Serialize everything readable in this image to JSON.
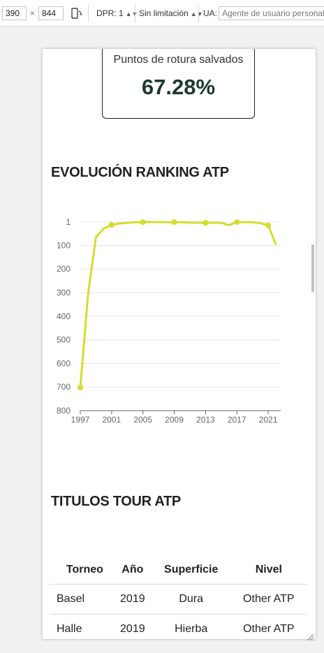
{
  "toolbar": {
    "width": "390",
    "times": "×",
    "height": "844",
    "dpr_label": "DPR: 1",
    "throttle_label": "Sin limitación",
    "ua_label": "UA:",
    "ua_placeholder": "Agente de usuario personali"
  },
  "stat": {
    "label": "Puntos de rotura salvados",
    "value": "67.28%"
  },
  "ranking_section": {
    "title": "EVOLUCIÓN RANKING ATP"
  },
  "titles_section": {
    "title": "TITULOS TOUR ATP"
  },
  "chart_data": {
    "type": "line",
    "title": "",
    "xlabel": "",
    "ylabel": "",
    "y_inverted": true,
    "ylim": [
      1,
      800
    ],
    "y_ticks": [
      "1",
      "100",
      "200",
      "300",
      "400",
      "500",
      "600",
      "700",
      "800"
    ],
    "x_ticks": [
      "1997",
      "2001",
      "2005",
      "2009",
      "2013",
      "2017",
      "2021"
    ],
    "xlim": [
      1997,
      2022.6
    ],
    "color": "#d4dc2c",
    "x": [
      1997,
      1998,
      1999,
      2000,
      2001,
      2002,
      2003,
      2004,
      2005,
      2006,
      2007,
      2008,
      2009,
      2010,
      2011,
      2012,
      2013,
      2014,
      2015,
      2016,
      2017,
      2018,
      2019,
      2020,
      2021,
      2022
    ],
    "values": [
      702,
      305,
      65,
      28,
      13,
      7,
      4,
      2,
      1,
      1,
      1,
      2,
      1,
      2,
      3,
      3,
      4,
      3,
      4,
      14,
      1,
      1,
      2,
      5,
      15,
      97
    ],
    "marker_years": [
      1997,
      2001,
      2005,
      2009,
      2013,
      2017,
      2021
    ]
  },
  "table": {
    "headers": [
      "Torneo",
      "Año",
      "Superficie",
      "Nivel"
    ],
    "rows": [
      [
        "Basel",
        "2019",
        "Dura",
        "Other ATP"
      ],
      [
        "Halle",
        "2019",
        "Hierba",
        "Other ATP"
      ]
    ]
  }
}
